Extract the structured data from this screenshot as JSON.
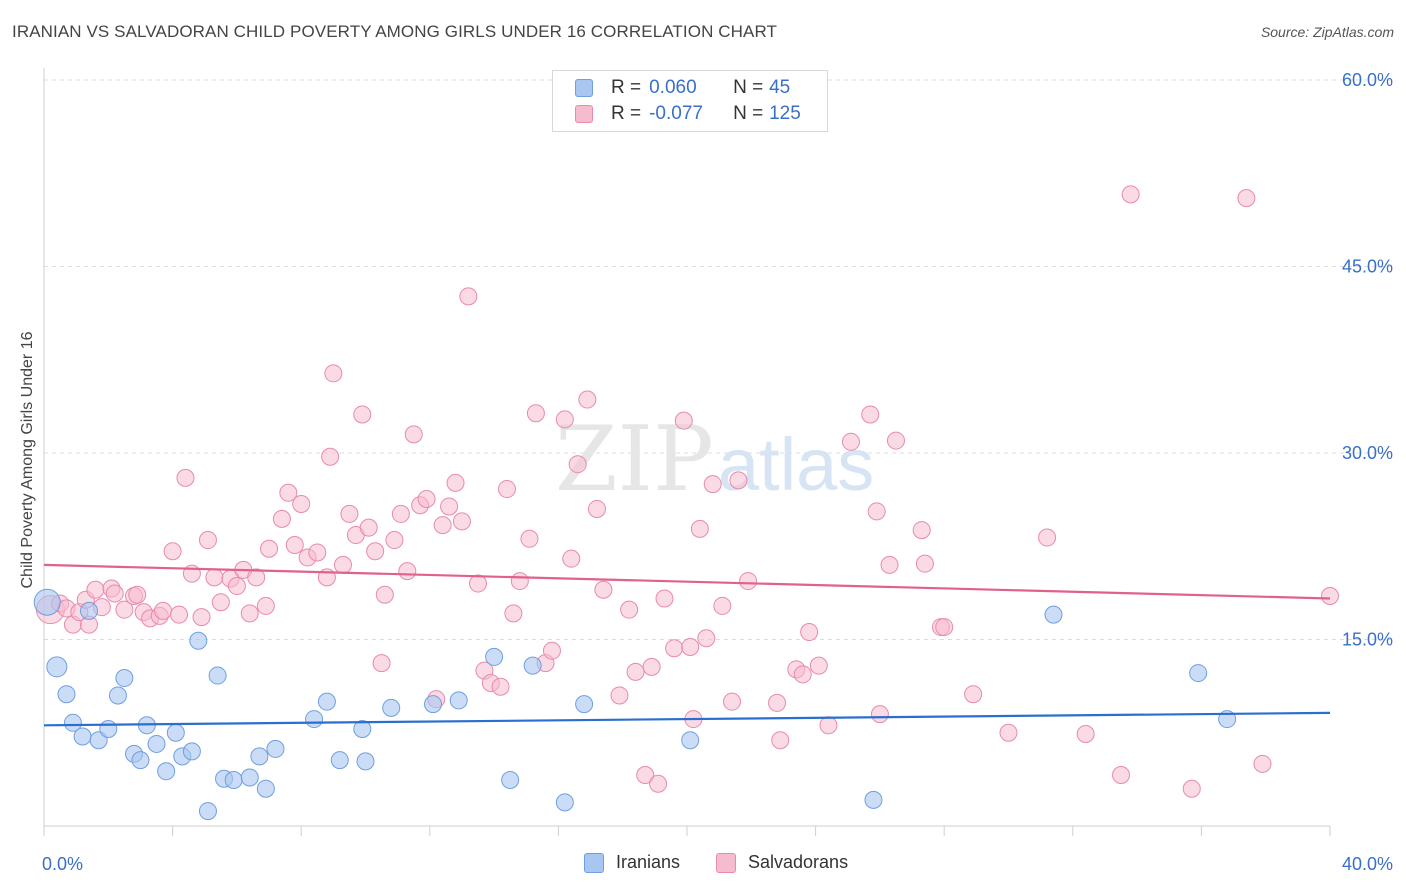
{
  "header": {
    "title": "IRANIAN VS SALVADORAN CHILD POVERTY AMONG GIRLS UNDER 16 CORRELATION CHART",
    "source": "Source: ZipAtlas.com"
  },
  "watermark": {
    "zip": "ZIP",
    "atlas": "atlas"
  },
  "legend": {
    "rows": [
      {
        "r_label": "R =",
        "r_value": "0.060",
        "n_label": "N =",
        "n_value": "45"
      },
      {
        "r_label": "R =",
        "r_value": "-0.077",
        "n_label": "N =",
        "n_value": "125"
      }
    ]
  },
  "colors": {
    "iranians_fill": "#a9c6f0",
    "iranians_stroke": "#6f9fe0",
    "iranians_line": "#2a6fcf",
    "salvadorans_fill": "#f5bcd0",
    "salvadorans_stroke": "#e98aab",
    "salvadorans_line": "#e0608e",
    "tick_label": "#3a6fc8"
  },
  "chart_data": {
    "type": "scatter",
    "title": "IRANIAN VS SALVADORAN CHILD POVERTY AMONG GIRLS UNDER 16 CORRELATION CHART",
    "xlabel": "",
    "ylabel": "Child Poverty Among Girls Under 16",
    "xlim": [
      0,
      40
    ],
    "ylim": [
      0,
      60
    ],
    "x_tick_labels": [
      "0.0%",
      "40.0%"
    ],
    "y_ticks": [
      15,
      30,
      45,
      60
    ],
    "y_tick_labels": [
      "15.0%",
      "30.0%",
      "45.0%",
      "60.0%"
    ],
    "grid": true,
    "legend_position": "top-center",
    "series": [
      {
        "name": "Iranians",
        "trend": {
          "x": [
            0,
            40
          ],
          "y": [
            8.1,
            9.1
          ]
        },
        "points": [
          [
            0.1,
            18.0
          ],
          [
            0.4,
            12.8
          ],
          [
            0.7,
            10.6
          ],
          [
            0.9,
            8.3
          ],
          [
            1.2,
            7.2
          ],
          [
            1.4,
            17.3
          ],
          [
            1.7,
            6.9
          ],
          [
            2.0,
            7.8
          ],
          [
            2.3,
            10.5
          ],
          [
            2.5,
            11.9
          ],
          [
            2.8,
            5.8
          ],
          [
            3.0,
            5.3
          ],
          [
            3.2,
            8.1
          ],
          [
            3.5,
            6.6
          ],
          [
            3.8,
            4.4
          ],
          [
            4.1,
            7.5
          ],
          [
            4.3,
            5.6
          ],
          [
            4.6,
            6.0
          ],
          [
            4.8,
            14.9
          ],
          [
            5.1,
            1.2
          ],
          [
            5.4,
            12.1
          ],
          [
            5.6,
            3.8
          ],
          [
            5.9,
            3.7
          ],
          [
            6.4,
            3.9
          ],
          [
            6.7,
            5.6
          ],
          [
            6.9,
            3.0
          ],
          [
            7.2,
            6.2
          ],
          [
            8.4,
            8.6
          ],
          [
            8.8,
            10.0
          ],
          [
            9.2,
            5.3
          ],
          [
            9.9,
            7.8
          ],
          [
            10.0,
            5.2
          ],
          [
            10.8,
            9.5
          ],
          [
            12.1,
            9.8
          ],
          [
            12.9,
            10.1
          ],
          [
            14.0,
            13.6
          ],
          [
            14.5,
            3.7
          ],
          [
            15.2,
            12.9
          ],
          [
            16.2,
            1.9
          ],
          [
            16.8,
            9.8
          ],
          [
            20.1,
            6.9
          ],
          [
            25.8,
            2.1
          ],
          [
            31.4,
            17.0
          ],
          [
            35.9,
            12.3
          ],
          [
            36.8,
            8.6
          ]
        ]
      },
      {
        "name": "Salvadorans",
        "trend": {
          "x": [
            0,
            40
          ],
          "y": [
            21.0,
            18.3
          ]
        },
        "points": [
          [
            0.2,
            17.4
          ],
          [
            0.5,
            17.9
          ],
          [
            0.7,
            17.5
          ],
          [
            0.9,
            16.2
          ],
          [
            1.1,
            17.2
          ],
          [
            1.3,
            18.2
          ],
          [
            1.4,
            16.2
          ],
          [
            1.6,
            19.0
          ],
          [
            1.8,
            17.6
          ],
          [
            2.1,
            19.1
          ],
          [
            2.2,
            18.7
          ],
          [
            2.5,
            17.4
          ],
          [
            2.8,
            18.5
          ],
          [
            2.9,
            18.6
          ],
          [
            3.1,
            17.2
          ],
          [
            3.3,
            16.7
          ],
          [
            3.6,
            16.9
          ],
          [
            3.7,
            17.3
          ],
          [
            4.0,
            22.1
          ],
          [
            4.2,
            17.0
          ],
          [
            4.4,
            28.0
          ],
          [
            4.6,
            20.3
          ],
          [
            4.9,
            16.8
          ],
          [
            5.1,
            23.0
          ],
          [
            5.3,
            20.0
          ],
          [
            5.5,
            18.0
          ],
          [
            5.8,
            19.9
          ],
          [
            6.0,
            19.3
          ],
          [
            6.2,
            20.6
          ],
          [
            6.4,
            17.1
          ],
          [
            6.6,
            20.0
          ],
          [
            6.9,
            17.7
          ],
          [
            7.0,
            22.3
          ],
          [
            7.4,
            24.7
          ],
          [
            7.6,
            26.8
          ],
          [
            7.8,
            22.6
          ],
          [
            8.0,
            25.9
          ],
          [
            8.2,
            21.6
          ],
          [
            8.5,
            22.0
          ],
          [
            8.8,
            20.0
          ],
          [
            8.9,
            29.7
          ],
          [
            9.0,
            36.4
          ],
          [
            9.3,
            21.0
          ],
          [
            9.5,
            25.1
          ],
          [
            9.7,
            23.4
          ],
          [
            9.9,
            33.1
          ],
          [
            10.1,
            24.0
          ],
          [
            10.3,
            22.1
          ],
          [
            10.5,
            13.1
          ],
          [
            10.6,
            18.6
          ],
          [
            10.9,
            23.0
          ],
          [
            11.1,
            25.1
          ],
          [
            11.3,
            20.5
          ],
          [
            11.5,
            31.5
          ],
          [
            11.7,
            25.8
          ],
          [
            11.9,
            26.3
          ],
          [
            12.2,
            10.2
          ],
          [
            12.4,
            24.2
          ],
          [
            12.6,
            25.7
          ],
          [
            12.8,
            27.6
          ],
          [
            13.0,
            24.5
          ],
          [
            13.2,
            42.6
          ],
          [
            13.5,
            19.5
          ],
          [
            13.7,
            12.5
          ],
          [
            13.9,
            11.5
          ],
          [
            14.2,
            11.2
          ],
          [
            14.4,
            27.1
          ],
          [
            14.6,
            17.1
          ],
          [
            14.8,
            19.7
          ],
          [
            15.1,
            23.1
          ],
          [
            15.3,
            33.2
          ],
          [
            15.6,
            13.1
          ],
          [
            15.8,
            14.1
          ],
          [
            16.2,
            32.7
          ],
          [
            16.4,
            21.5
          ],
          [
            16.6,
            29.1
          ],
          [
            16.9,
            34.3
          ],
          [
            17.2,
            25.5
          ],
          [
            17.4,
            19.0
          ],
          [
            17.9,
            10.5
          ],
          [
            18.2,
            17.4
          ],
          [
            18.4,
            12.4
          ],
          [
            18.7,
            4.1
          ],
          [
            18.9,
            12.8
          ],
          [
            19.1,
            3.4
          ],
          [
            19.3,
            18.3
          ],
          [
            19.6,
            14.3
          ],
          [
            19.9,
            32.6
          ],
          [
            20.1,
            14.4
          ],
          [
            20.2,
            8.6
          ],
          [
            20.4,
            23.9
          ],
          [
            20.6,
            15.1
          ],
          [
            20.8,
            27.5
          ],
          [
            21.1,
            17.7
          ],
          [
            21.4,
            10.0
          ],
          [
            21.6,
            27.8
          ],
          [
            21.9,
            19.7
          ],
          [
            22.8,
            9.9
          ],
          [
            22.9,
            6.9
          ],
          [
            23.4,
            12.6
          ],
          [
            23.6,
            12.2
          ],
          [
            23.8,
            15.6
          ],
          [
            24.1,
            12.9
          ],
          [
            24.4,
            8.1
          ],
          [
            25.1,
            30.9
          ],
          [
            25.7,
            33.1
          ],
          [
            25.9,
            25.3
          ],
          [
            26.0,
            9.0
          ],
          [
            26.3,
            21.0
          ],
          [
            26.5,
            31.0
          ],
          [
            27.3,
            23.8
          ],
          [
            27.4,
            21.1
          ],
          [
            27.9,
            16.0
          ],
          [
            28.0,
            16.0
          ],
          [
            28.9,
            10.6
          ],
          [
            30.0,
            7.5
          ],
          [
            31.2,
            23.2
          ],
          [
            32.4,
            7.4
          ],
          [
            33.5,
            4.1
          ],
          [
            33.8,
            50.8
          ],
          [
            35.7,
            3.0
          ],
          [
            37.4,
            50.5
          ],
          [
            37.9,
            5.0
          ],
          [
            40.0,
            18.5
          ]
        ]
      }
    ]
  }
}
